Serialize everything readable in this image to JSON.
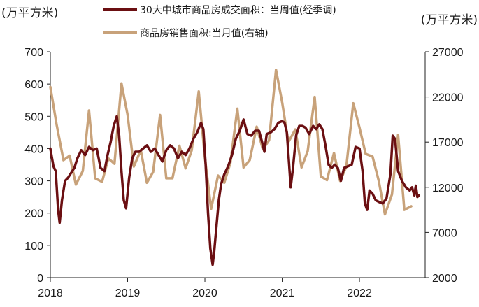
{
  "chart_data": {
    "type": "line",
    "y_left_unit": "(万平方米)",
    "y_right_unit": "(万平方米)",
    "x_ticks": [
      "2018",
      "2019",
      "2020",
      "2021",
      "2022"
    ],
    "y_left_ticks": [
      "0",
      "100",
      "200",
      "300",
      "400",
      "500",
      "600",
      "700"
    ],
    "y_right_ticks": [
      "2000",
      "7000",
      "12000",
      "17000",
      "22000",
      "27000"
    ],
    "ylim_left": [
      0,
      700
    ],
    "ylim_right": [
      2000,
      27000
    ],
    "xlim": [
      2018.0,
      2022.85
    ],
    "legend_position": "top",
    "series": [
      {
        "name": "30大中城市商品房成交面积：当周值(经季调)",
        "axis": "left",
        "color": "#6b0f12",
        "line_width": 3.5,
        "points": [
          [
            2018.0,
            400
          ],
          [
            2018.04,
            345
          ],
          [
            2018.07,
            330
          ],
          [
            2018.1,
            210
          ],
          [
            2018.12,
            170
          ],
          [
            2018.15,
            240
          ],
          [
            2018.19,
            300
          ],
          [
            2018.23,
            310
          ],
          [
            2018.27,
            325
          ],
          [
            2018.31,
            340
          ],
          [
            2018.35,
            370
          ],
          [
            2018.4,
            395
          ],
          [
            2018.45,
            380
          ],
          [
            2018.5,
            405
          ],
          [
            2018.55,
            395
          ],
          [
            2018.6,
            400
          ],
          [
            2018.65,
            340
          ],
          [
            2018.7,
            330
          ],
          [
            2018.74,
            380
          ],
          [
            2018.78,
            420
          ],
          [
            2018.82,
            470
          ],
          [
            2018.86,
            500
          ],
          [
            2018.89,
            440
          ],
          [
            2018.92,
            330
          ],
          [
            2018.95,
            240
          ],
          [
            2018.98,
            215
          ],
          [
            2019.02,
            310
          ],
          [
            2019.06,
            370
          ],
          [
            2019.1,
            390
          ],
          [
            2019.15,
            390
          ],
          [
            2019.2,
            400
          ],
          [
            2019.25,
            410
          ],
          [
            2019.3,
            390
          ],
          [
            2019.35,
            400
          ],
          [
            2019.4,
            380
          ],
          [
            2019.45,
            360
          ],
          [
            2019.5,
            395
          ],
          [
            2019.55,
            410
          ],
          [
            2019.6,
            400
          ],
          [
            2019.65,
            370
          ],
          [
            2019.7,
            390
          ],
          [
            2019.75,
            380
          ],
          [
            2019.8,
            400
          ],
          [
            2019.85,
            430
          ],
          [
            2019.9,
            450
          ],
          [
            2019.95,
            480
          ],
          [
            2019.98,
            460
          ],
          [
            2020.01,
            350
          ],
          [
            2020.04,
            200
          ],
          [
            2020.07,
            90
          ],
          [
            2020.1,
            40
          ],
          [
            2020.12,
            80
          ],
          [
            2020.15,
            160
          ],
          [
            2020.18,
            240
          ],
          [
            2020.21,
            290
          ],
          [
            2020.25,
            320
          ],
          [
            2020.3,
            345
          ],
          [
            2020.35,
            380
          ],
          [
            2020.4,
            430
          ],
          [
            2020.45,
            455
          ],
          [
            2020.5,
            490
          ],
          [
            2020.55,
            445
          ],
          [
            2020.6,
            440
          ],
          [
            2020.65,
            455
          ],
          [
            2020.7,
            455
          ],
          [
            2020.74,
            420
          ],
          [
            2020.77,
            390
          ],
          [
            2020.8,
            445
          ],
          [
            2020.85,
            450
          ],
          [
            2020.9,
            460
          ],
          [
            2020.95,
            480
          ],
          [
            2021.0,
            485
          ],
          [
            2021.03,
            480
          ],
          [
            2021.06,
            450
          ],
          [
            2021.09,
            350
          ],
          [
            2021.11,
            280
          ],
          [
            2021.14,
            340
          ],
          [
            2021.18,
            440
          ],
          [
            2021.22,
            470
          ],
          [
            2021.26,
            470
          ],
          [
            2021.3,
            465
          ],
          [
            2021.35,
            445
          ],
          [
            2021.4,
            470
          ],
          [
            2021.44,
            460
          ],
          [
            2021.48,
            475
          ],
          [
            2021.52,
            460
          ],
          [
            2021.56,
            410
          ],
          [
            2021.6,
            350
          ],
          [
            2021.64,
            340
          ],
          [
            2021.68,
            350
          ],
          [
            2021.72,
            340
          ],
          [
            2021.76,
            300
          ],
          [
            2021.8,
            340
          ],
          [
            2021.85,
            345
          ],
          [
            2021.9,
            350
          ],
          [
            2021.95,
            405
          ],
          [
            2022.0,
            400
          ],
          [
            2022.04,
            330
          ],
          [
            2022.07,
            230
          ],
          [
            2022.1,
            210
          ],
          [
            2022.13,
            270
          ],
          [
            2022.17,
            260
          ],
          [
            2022.21,
            240
          ],
          [
            2022.25,
            235
          ],
          [
            2022.3,
            230
          ],
          [
            2022.35,
            245
          ],
          [
            2022.4,
            320
          ],
          [
            2022.43,
            440
          ],
          [
            2022.46,
            430
          ],
          [
            2022.5,
            330
          ],
          [
            2022.55,
            300
          ],
          [
            2022.6,
            280
          ],
          [
            2022.65,
            270
          ],
          [
            2022.68,
            280
          ],
          [
            2022.71,
            255
          ],
          [
            2022.73,
            285
          ],
          [
            2022.75,
            250
          ],
          [
            2022.77,
            255
          ]
        ]
      },
      {
        "name": "商品房销售面积:当月值(右轴)",
        "axis": "right",
        "color": "#c8a27a",
        "line_width": 3.5,
        "points": [
          [
            2018.0,
            23100
          ],
          [
            2018.08,
            19000
          ],
          [
            2018.17,
            15000
          ],
          [
            2018.25,
            15500
          ],
          [
            2018.33,
            12300
          ],
          [
            2018.42,
            13800
          ],
          [
            2018.5,
            20500
          ],
          [
            2018.58,
            13000
          ],
          [
            2018.67,
            12600
          ],
          [
            2018.75,
            15200
          ],
          [
            2018.83,
            14600
          ],
          [
            2018.92,
            23500
          ],
          [
            2019.0,
            20000
          ],
          [
            2019.08,
            14300
          ],
          [
            2019.17,
            16100
          ],
          [
            2019.25,
            12500
          ],
          [
            2019.33,
            13700
          ],
          [
            2019.42,
            20000
          ],
          [
            2019.5,
            13000
          ],
          [
            2019.58,
            13000
          ],
          [
            2019.67,
            16600
          ],
          [
            2019.75,
            14100
          ],
          [
            2019.83,
            16100
          ],
          [
            2019.92,
            22600
          ],
          [
            2020.0,
            15300
          ],
          [
            2020.08,
            9600
          ],
          [
            2020.17,
            13300
          ],
          [
            2020.25,
            12500
          ],
          [
            2020.33,
            14700
          ],
          [
            2020.42,
            20700
          ],
          [
            2020.5,
            14200
          ],
          [
            2020.58,
            15000
          ],
          [
            2020.67,
            18700
          ],
          [
            2020.75,
            16200
          ],
          [
            2020.83,
            17200
          ],
          [
            2020.92,
            25000
          ],
          [
            2021.0,
            21400
          ],
          [
            2021.08,
            17000
          ],
          [
            2021.17,
            18400
          ],
          [
            2021.25,
            14200
          ],
          [
            2021.33,
            16000
          ],
          [
            2021.42,
            22000
          ],
          [
            2021.5,
            13200
          ],
          [
            2021.58,
            12800
          ],
          [
            2021.67,
            15800
          ],
          [
            2021.75,
            12700
          ],
          [
            2021.83,
            14300
          ],
          [
            2021.92,
            21300
          ],
          [
            2022.0,
            18600
          ],
          [
            2022.08,
            15700
          ],
          [
            2022.17,
            15400
          ],
          [
            2022.25,
            12700
          ],
          [
            2022.33,
            9000
          ],
          [
            2022.42,
            11200
          ],
          [
            2022.5,
            17800
          ],
          [
            2022.58,
            9500
          ],
          [
            2022.67,
            9900
          ]
        ]
      }
    ]
  }
}
